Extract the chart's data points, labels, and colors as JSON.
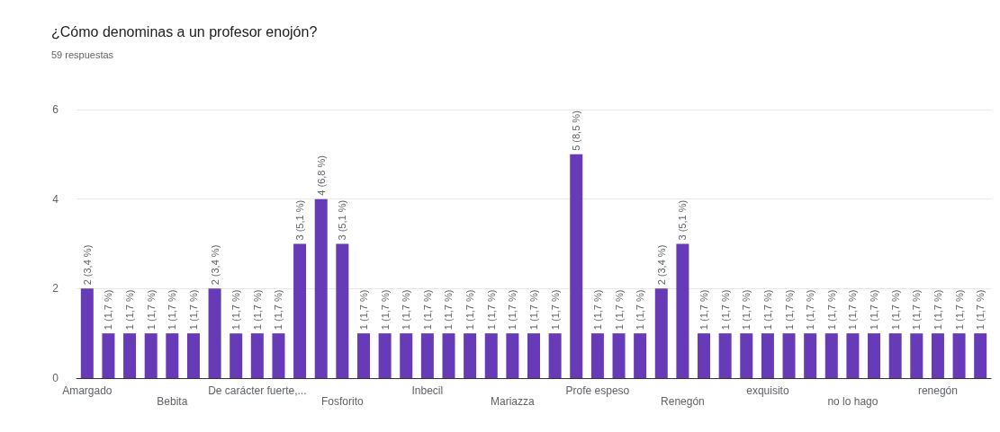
{
  "chart_data": {
    "type": "bar",
    "title": "¿Cómo denominas a un profesor enojón?",
    "subtitle": "59 respuestas",
    "categories": [
      "Amargado",
      null,
      null,
      null,
      "Bebita",
      null,
      null,
      null,
      "De carácter fuerte,...",
      null,
      null,
      null,
      "Fosforito",
      null,
      null,
      null,
      "Inbecil",
      null,
      null,
      null,
      "Mariazza",
      null,
      null,
      null,
      "Profe espeso",
      null,
      null,
      null,
      "Renegón",
      null,
      null,
      null,
      "exquisito",
      null,
      null,
      null,
      "no lo hago",
      null,
      null,
      null,
      "renegón",
      null,
      null
    ],
    "values": [
      2,
      1,
      1,
      1,
      1,
      1,
      2,
      1,
      1,
      1,
      3,
      4,
      3,
      1,
      1,
      1,
      1,
      1,
      1,
      1,
      1,
      1,
      1,
      5,
      1,
      1,
      1,
      2,
      3,
      1,
      1,
      1,
      1,
      1,
      1,
      1,
      1,
      1,
      1,
      1,
      1,
      1,
      1
    ],
    "value_labels": [
      "2 (3,4 %)",
      "1 (1,7 %)",
      "1 (1,7 %)",
      "1 (1,7 %)",
      "1 (1,7 %)",
      "1 (1,7 %)",
      "2 (3,4 %)",
      "1 (1,7 %)",
      "1 (1,7 %)",
      "1 (1,7 %)",
      "3 (5,1 %)",
      "4 (6,8 %)",
      "3 (5,1 %)",
      "1 (1,7 %)",
      "1 (1,7 %)",
      "1 (1,7 %)",
      "1 (1,7 %)",
      "1 (1,7 %)",
      "1 (1,7 %)",
      "1 (1,7 %)",
      "1 (1,7 %)",
      "1 (1,7 %)",
      "1 (1,7 %)",
      "5 (8,5 %)",
      "1 (1,7 %)",
      "1 (1,7 %)",
      "1 (1,7 %)",
      "2 (3,4 %)",
      "3 (5,1 %)",
      "1 (1,7 %)",
      "1 (1,7 %)",
      "1 (1,7 %)",
      "1 (1,7 %)",
      "1 (1,7 %)",
      "1 (1,7 %)",
      "1 (1,7 %)",
      "1 (1,7 %)",
      "1 (1,7 %)",
      "1 (1,7 %)",
      "1 (1,7 %)",
      "1 (1,7 %)",
      "1 (1,7 %)",
      "1 (1,7 %)"
    ],
    "color": "#673ab7",
    "ylim": [
      0,
      6
    ],
    "yticks": [
      0,
      2,
      4,
      6
    ],
    "grid": "y"
  }
}
